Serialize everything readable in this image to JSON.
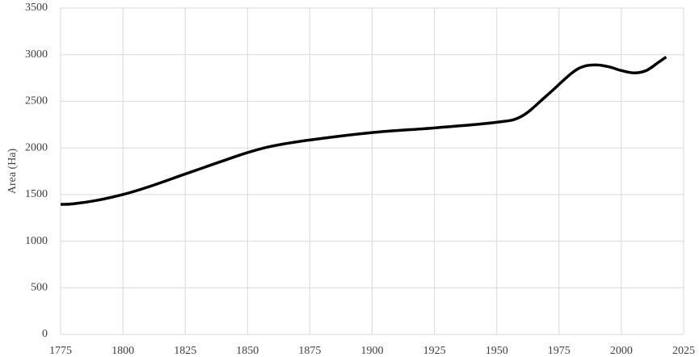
{
  "chart_data": {
    "type": "line",
    "y_label": "Area (Ha)",
    "x": [
      1775,
      1780,
      1790,
      1800,
      1810,
      1825,
      1840,
      1850,
      1860,
      1875,
      1900,
      1925,
      1950,
      1960,
      1970,
      1980,
      1985,
      1990,
      1995,
      2000,
      2005,
      2010,
      2015,
      2018
    ],
    "values": [
      1395,
      1400,
      1440,
      1500,
      1580,
      1720,
      1860,
      1950,
      2020,
      2085,
      2165,
      2215,
      2275,
      2340,
      2560,
      2800,
      2875,
      2890,
      2870,
      2830,
      2805,
      2830,
      2920,
      2975
    ],
    "color": "#000000",
    "xlim": [
      1775,
      2025
    ],
    "xticks": [
      1775,
      1800,
      1825,
      1850,
      1875,
      1900,
      1925,
      1950,
      1975,
      2000,
      2025
    ],
    "ylim": [
      0,
      3500
    ],
    "yticks": [
      0,
      500,
      1000,
      1500,
      2000,
      2500,
      3000,
      3500
    ],
    "grid": true
  }
}
